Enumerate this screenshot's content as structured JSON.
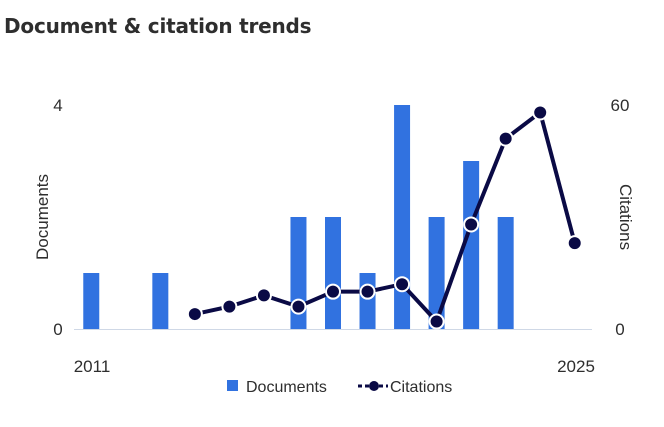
{
  "page": {
    "title": "Document & citation trends"
  },
  "chart_data": {
    "type": "bar",
    "title": "Document & citation trends",
    "x": [
      2011,
      2012,
      2013,
      2014,
      2015,
      2016,
      2017,
      2018,
      2019,
      2020,
      2021,
      2022,
      2023,
      2024,
      2025
    ],
    "x_tick_labels": [
      "2011",
      "2025"
    ],
    "series": [
      {
        "name": "Documents",
        "type": "bar",
        "axis": "left",
        "color": "#3172e0",
        "values": [
          1,
          0,
          1,
          0,
          0,
          0,
          2,
          2,
          1,
          4,
          2,
          3,
          2,
          0,
          0
        ]
      },
      {
        "name": "Citations",
        "type": "line",
        "axis": "right",
        "color": "#0a0a45",
        "values": [
          null,
          null,
          null,
          4,
          6,
          9,
          6,
          10,
          10,
          12,
          2,
          28,
          51,
          58,
          23
        ]
      }
    ],
    "y_left": {
      "label": "Documents",
      "range": [
        0,
        4
      ],
      "ticks": [
        "0",
        "4"
      ]
    },
    "y_right": {
      "label": "Citations",
      "range": [
        0,
        60
      ],
      "ticks": [
        "0",
        "60"
      ]
    },
    "grid": false,
    "legend": {
      "position": "bottom-center"
    }
  }
}
